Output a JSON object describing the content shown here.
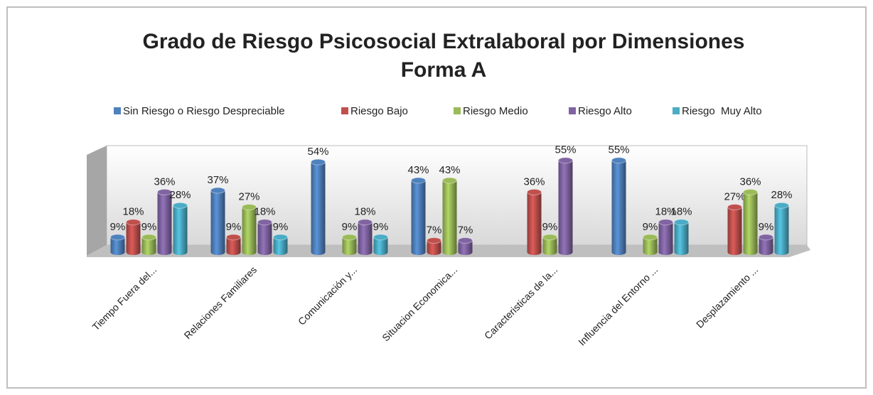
{
  "chart_data": {
    "type": "bar",
    "title": "Grado de Riesgo Psicosocial Extralaboral por Dimensiones",
    "subtitle": "Forma A",
    "categories": [
      "Tiempo Fuera del...",
      "Relaciones Familiares",
      "Comunicación y...",
      "Situacion Economica...",
      "Caracteristicas de la...",
      "Influencia del Entorno ...",
      "Desplazamiento ..."
    ],
    "series": [
      {
        "name": "Sin Riesgo o Riesgo Despreciable",
        "color": "#4f81bd",
        "values": [
          9,
          37,
          54,
          43,
          null,
          55,
          null
        ],
        "value_labels": [
          "9%",
          "37%",
          "54%",
          "43%",
          null,
          "55%",
          null
        ]
      },
      {
        "name": "Riesgo Bajo",
        "color": "#c0504d",
        "values": [
          18,
          9,
          null,
          7,
          36,
          null,
          27
        ],
        "value_labels": [
          "18%",
          "9%",
          null,
          "7%",
          "36%",
          null,
          "27%"
        ]
      },
      {
        "name": "Riesgo Medio",
        "color": "#9bbb59",
        "values": [
          9,
          27,
          9,
          43,
          9,
          9,
          36
        ],
        "value_labels": [
          "9%",
          "27%",
          "9%",
          "43%",
          "9%",
          "9%",
          "36%"
        ]
      },
      {
        "name": "Riesgo Alto",
        "color": "#8064a2",
        "values": [
          36,
          18,
          18,
          7,
          55,
          18,
          9
        ],
        "value_labels": [
          "36%",
          "18%",
          "18%",
          "7%",
          "55%",
          "18%",
          "9%"
        ]
      },
      {
        "name": "Riesgo  Muy Alto",
        "color": "#4bacc6",
        "values": [
          28,
          9,
          9,
          null,
          null,
          18,
          28
        ],
        "value_labels": [
          "28%",
          "9%",
          "9%",
          null,
          null,
          "18%",
          "28%"
        ]
      }
    ]
  }
}
